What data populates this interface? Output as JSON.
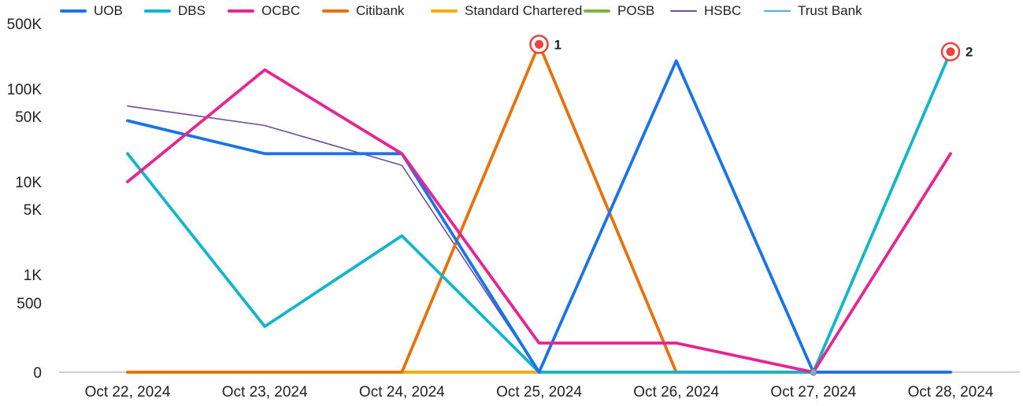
{
  "chart_data": {
    "type": "line",
    "title": "",
    "xlabel": "",
    "ylabel": "",
    "y_scale": "symlog",
    "ylim": [
      0,
      500000
    ],
    "y_ticks": [
      {
        "label": "0",
        "value": 0
      },
      {
        "label": "500",
        "value": 500
      },
      {
        "label": "1K",
        "value": 1000
      },
      {
        "label": "5K",
        "value": 5000
      },
      {
        "label": "10K",
        "value": 10000
      },
      {
        "label": "50K",
        "value": 50000
      },
      {
        "label": "100K",
        "value": 100000
      },
      {
        "label": "500K",
        "value": 500000
      }
    ],
    "categories": [
      "Oct 22, 2024",
      "Oct 23, 2024",
      "Oct 24, 2024",
      "Oct 25, 2024",
      "Oct 26, 2024",
      "Oct 27, 2024",
      "Oct 28, 2024"
    ],
    "legend_position": "top",
    "grid": false,
    "series": [
      {
        "name": "UOB",
        "color": "#1a73e8",
        "width": "thick",
        "values": [
          45000,
          20000,
          20000,
          0,
          200000,
          0,
          0
        ]
      },
      {
        "name": "DBS",
        "color": "#12b5cb",
        "width": "thick",
        "values": [
          20000,
          330,
          2600,
          0,
          0,
          0,
          250000
        ]
      },
      {
        "name": "OCBC",
        "color": "#e52592",
        "width": "thick",
        "values": [
          10000,
          160000,
          20000,
          210,
          210,
          0,
          20000
        ]
      },
      {
        "name": "Citibank",
        "color": "#e8710a",
        "width": "thick",
        "values": [
          0,
          0,
          0,
          300000,
          0,
          0,
          0
        ]
      },
      {
        "name": "Standard Chartered",
        "color": "#f9ab00",
        "width": "thick",
        "values": [
          0,
          0,
          0,
          0,
          0,
          0,
          0
        ]
      },
      {
        "name": "POSB",
        "color": "#7cb342",
        "width": "thick",
        "values": [
          0,
          0,
          0,
          0,
          0,
          0,
          0
        ]
      },
      {
        "name": "HSBC",
        "color": "#6e4c9e",
        "width": "thin",
        "values": [
          65000,
          40000,
          15000,
          0,
          0,
          0,
          0
        ]
      },
      {
        "name": "Trust Bank",
        "color": "#4fb0d8",
        "width": "thin",
        "values": [
          0,
          0,
          0,
          0,
          0,
          0,
          0
        ]
      }
    ],
    "annotations": [
      {
        "label": "1",
        "category_index": 3,
        "value": 300000
      },
      {
        "label": "2",
        "category_index": 6,
        "value": 250000
      }
    ]
  }
}
